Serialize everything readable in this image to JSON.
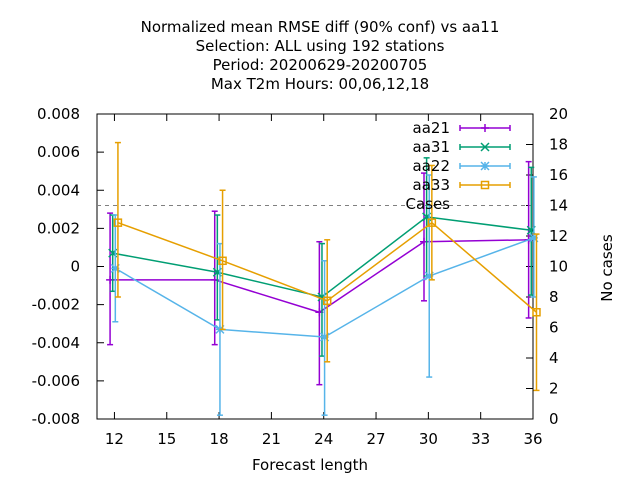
{
  "chart_data": {
    "type": "line",
    "title_lines": [
      "Normalized mean RMSE diff (90% conf) vs aa11",
      "Selection: ALL using   192 stations",
      "Period: 20200629-20200705",
      "Max T2m   Hours:  00,06,12,18"
    ],
    "xlabel": "Forecast length",
    "ylabel": "",
    "y2label": "No cases",
    "xlim": [
      11,
      36
    ],
    "ylim": [
      -0.008,
      0.008
    ],
    "y2lim": [
      0,
      20
    ],
    "xticks": [
      12,
      15,
      18,
      21,
      24,
      27,
      30,
      33,
      36
    ],
    "yticks": [
      -0.008,
      -0.006,
      -0.004,
      -0.002,
      0,
      0.002,
      0.004,
      0.006,
      0.008
    ],
    "ytick_labels": [
      "-0.008",
      "-0.006",
      "-0.004",
      "-0.002",
      "0",
      "0.002",
      "0.004",
      "0.006",
      "0.008"
    ],
    "y2ticks": [
      0,
      2,
      4,
      6,
      8,
      10,
      12,
      14,
      16,
      18,
      20
    ],
    "legend_position": "top-right",
    "grid": false,
    "series": [
      {
        "name": "aa21",
        "color": "#9400d3",
        "marker": "plus",
        "x": [
          11.75,
          17.75,
          23.75,
          29.75,
          35.75
        ],
        "y": [
          -0.0007,
          -0.0007,
          -0.0024,
          0.0013,
          0.0014
        ],
        "err_low": [
          -0.0041,
          -0.0041,
          -0.0062,
          -0.0018,
          -0.0027
        ],
        "err_high": [
          0.0028,
          0.0029,
          0.0013,
          0.0049,
          0.0055
        ]
      },
      {
        "name": "aa31",
        "color": "#009e73",
        "marker": "x",
        "x": [
          11.9,
          17.9,
          23.9,
          29.9,
          35.9
        ],
        "y": [
          0.0007,
          -0.0003,
          -0.0016,
          0.0026,
          0.0019
        ],
        "err_low": [
          -0.0013,
          -0.0028,
          -0.0047,
          -0.0005,
          -0.0015
        ],
        "err_high": [
          0.0027,
          0.0027,
          0.0012,
          0.0057,
          0.0052
        ]
      },
      {
        "name": "aa22",
        "color": "#56b4e9",
        "marker": "star",
        "x": [
          12.05,
          18.05,
          24.05,
          30.05,
          36.05
        ],
        "y": [
          -0.0001,
          -0.0033,
          -0.0037,
          -0.0005,
          0.0015
        ],
        "err_low": [
          -0.0029,
          -0.0078,
          -0.0078,
          -0.0058,
          -0.0016
        ],
        "err_high": [
          0.0027,
          0.0012,
          0.0003,
          0.0048,
          0.0047
        ]
      },
      {
        "name": "aa33",
        "color": "#e69f00",
        "marker": "square",
        "x": [
          12.2,
          18.2,
          24.2,
          30.2,
          36.2
        ],
        "y": [
          0.0023,
          0.0003,
          -0.0018,
          0.0023,
          -0.0024
        ],
        "err_low": [
          -0.0016,
          -0.0033,
          -0.005,
          -0.0007,
          -0.0065
        ],
        "err_high": [
          0.0065,
          0.004,
          0.0014,
          0.0053,
          0.0017
        ]
      }
    ],
    "cases": {
      "name": "Cases",
      "color": "#808080",
      "style": "dashed",
      "value": 14
    }
  }
}
